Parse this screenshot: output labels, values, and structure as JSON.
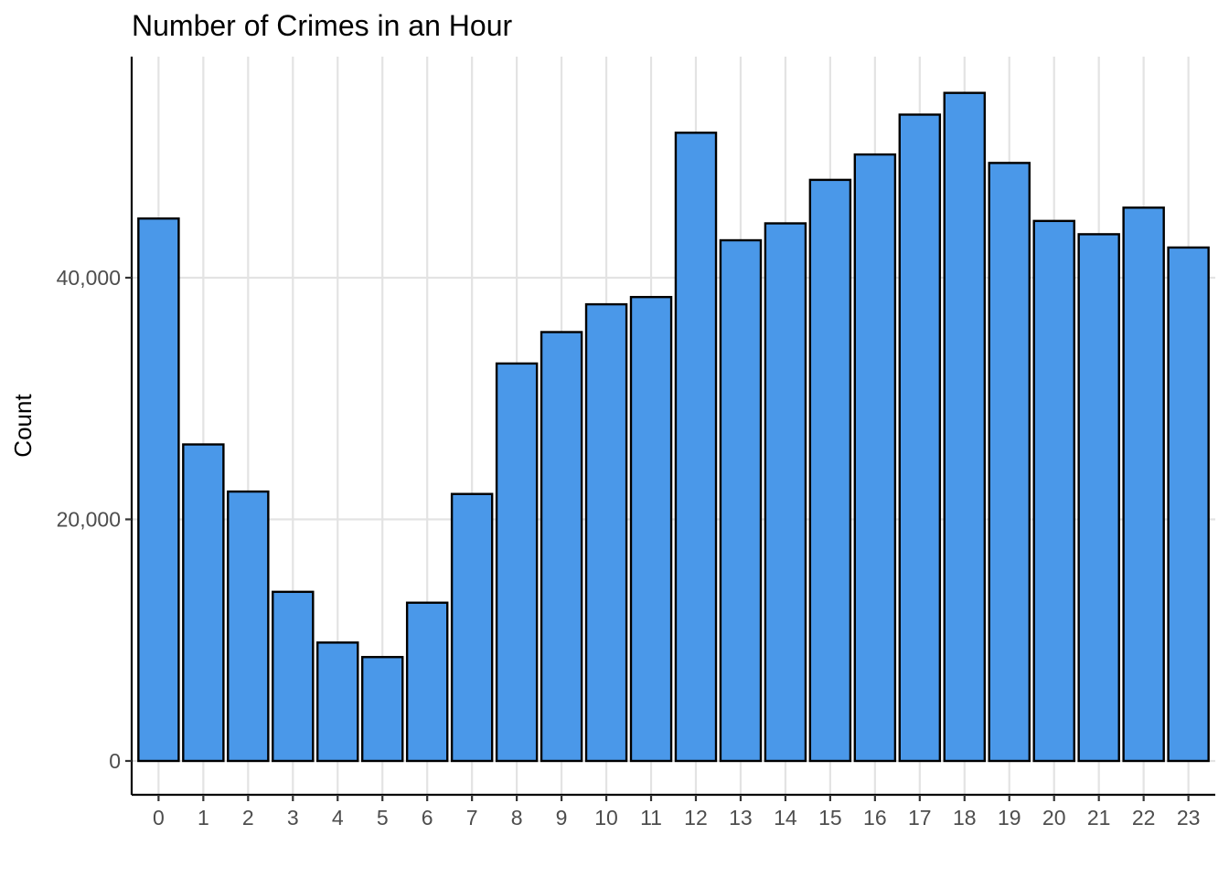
{
  "chart_data": {
    "type": "bar",
    "title": "Number of Crimes in an Hour",
    "xlabel": "",
    "ylabel": "Count",
    "categories": [
      "0",
      "1",
      "2",
      "3",
      "4",
      "5",
      "6",
      "7",
      "8",
      "9",
      "10",
      "11",
      "12",
      "13",
      "14",
      "15",
      "16",
      "17",
      "18",
      "19",
      "20",
      "21",
      "22",
      "23"
    ],
    "values": [
      44900,
      26200,
      22300,
      14000,
      9800,
      8600,
      13100,
      22100,
      32900,
      35500,
      37800,
      38400,
      52000,
      43100,
      44500,
      48100,
      50200,
      53500,
      55300,
      49500,
      44700,
      43600,
      45800,
      42500
    ],
    "yticks": [
      0,
      20000,
      40000
    ],
    "ytick_labels": [
      "0",
      "20,000",
      "40,000"
    ],
    "ylim": [
      -2800,
      58300
    ],
    "grid": true,
    "bar_color": "#4A98E9",
    "bar_edge_color": "#000000"
  }
}
